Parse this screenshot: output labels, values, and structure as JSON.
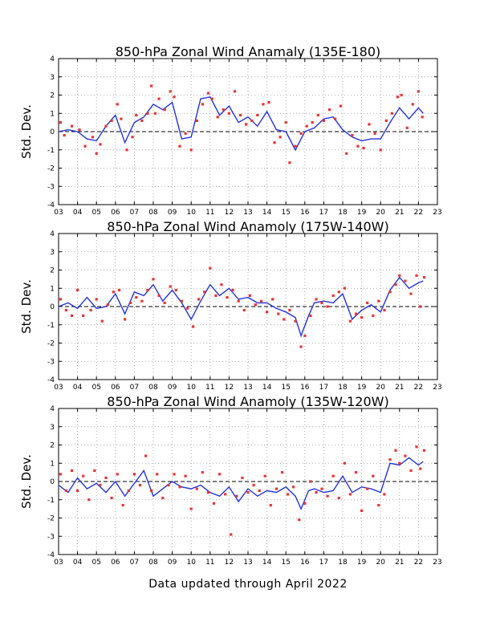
{
  "footer": "Data updated through April 2022",
  "colors": {
    "line": "#2233dd",
    "points": "#ee3333",
    "grid": "#999999",
    "zero": "#000000"
  },
  "chart_data": [
    {
      "type": "line",
      "title": "850-hPa Zonal Wind Anamaly (135E-180)",
      "ylabel": "Std. Dev.",
      "xlabel": "",
      "xlim": [
        2003,
        2023
      ],
      "ylim": [
        -4,
        4
      ],
      "x_ticks": [
        "03",
        "04",
        "05",
        "06",
        "07",
        "08",
        "09",
        "10",
        "11",
        "12",
        "13",
        "14",
        "15",
        "16",
        "17",
        "18",
        "19",
        "20",
        "21",
        "22",
        "23"
      ],
      "y_ticks": [
        "-4",
        "-3",
        "-2",
        "-1",
        "0",
        "1",
        "2",
        "3",
        "4"
      ],
      "grid": true,
      "series": [
        {
          "style": "line",
          "x": [
            2003.0,
            2003.5,
            2004.0,
            2004.5,
            2005.0,
            2005.5,
            2006.0,
            2006.5,
            2007.0,
            2007.5,
            2008.0,
            2008.5,
            2009.0,
            2009.5,
            2010.0,
            2010.5,
            2011.0,
            2011.5,
            2012.0,
            2012.5,
            2013.0,
            2013.5,
            2014.0,
            2014.5,
            2015.0,
            2015.5,
            2016.0,
            2016.5,
            2017.0,
            2017.5,
            2018.0,
            2018.5,
            2019.0,
            2019.5,
            2020.0,
            2020.5,
            2021.0,
            2021.5,
            2022.0,
            2022.25
          ],
          "y": [
            0.0,
            0.1,
            0.0,
            -0.4,
            -0.5,
            0.3,
            0.9,
            -0.6,
            0.5,
            0.8,
            1.5,
            1.2,
            1.6,
            -0.4,
            -0.3,
            1.8,
            1.9,
            0.9,
            1.4,
            0.5,
            0.8,
            0.3,
            1.1,
            0.1,
            0.0,
            -1.0,
            0.0,
            0.2,
            0.7,
            0.8,
            0.1,
            -0.3,
            -0.5,
            -0.4,
            -0.4,
            0.5,
            1.3,
            0.7,
            1.3,
            1.0
          ]
        },
        {
          "style": "points",
          "x": [
            2003.1,
            2003.3,
            2003.7,
            2004.1,
            2004.4,
            2004.8,
            2005.0,
            2005.2,
            2005.5,
            2005.8,
            2006.1,
            2006.3,
            2006.6,
            2006.9,
            2007.1,
            2007.4,
            2007.7,
            2007.9,
            2008.1,
            2008.3,
            2008.6,
            2008.9,
            2009.1,
            2009.4,
            2009.7,
            2010.0,
            2010.3,
            2010.6,
            2010.9,
            2011.1,
            2011.4,
            2011.7,
            2012.0,
            2012.3,
            2012.6,
            2012.9,
            2013.2,
            2013.5,
            2013.8,
            2014.1,
            2014.4,
            2014.7,
            2015.0,
            2015.2,
            2015.5,
            2015.8,
            2016.1,
            2016.4,
            2016.7,
            2017.0,
            2017.3,
            2017.6,
            2017.9,
            2018.2,
            2018.5,
            2018.8,
            2019.1,
            2019.4,
            2019.7,
            2020.0,
            2020.3,
            2020.6,
            2020.9,
            2021.1,
            2021.4,
            2021.7,
            2022.0,
            2022.2
          ],
          "y": [
            0.5,
            -0.2,
            0.3,
            0.1,
            -0.8,
            -0.3,
            -1.2,
            -0.7,
            0.3,
            0.6,
            1.5,
            0.7,
            -1.0,
            -0.3,
            0.9,
            0.6,
            1.0,
            2.5,
            1.0,
            1.8,
            1.2,
            2.2,
            1.9,
            -0.8,
            -0.1,
            -1.0,
            0.6,
            1.5,
            2.1,
            1.8,
            0.8,
            1.2,
            1.0,
            2.2,
            0.9,
            0.4,
            0.6,
            0.9,
            1.5,
            1.6,
            -0.6,
            -0.3,
            0.5,
            -1.7,
            -0.8,
            -0.1,
            0.3,
            0.5,
            0.9,
            0.6,
            1.2,
            0.7,
            1.4,
            -1.2,
            -0.2,
            -0.8,
            -0.9,
            0.4,
            -0.1,
            -1.0,
            0.6,
            1.0,
            1.9,
            2.0,
            0.2,
            1.5,
            2.2,
            0.8
          ]
        }
      ]
    },
    {
      "type": "line",
      "title": "850-hPa Zonal Wind Anamoly (175W-140W)",
      "ylabel": "Std. Dev.",
      "xlabel": "",
      "xlim": [
        2003,
        2023
      ],
      "ylim": [
        -4,
        4
      ],
      "x_ticks": [
        "03",
        "04",
        "05",
        "06",
        "07",
        "08",
        "09",
        "10",
        "11",
        "12",
        "13",
        "14",
        "15",
        "16",
        "17",
        "18",
        "19",
        "20",
        "21",
        "22",
        "23"
      ],
      "y_ticks": [
        "-4",
        "-3",
        "-2",
        "-1",
        "0",
        "1",
        "2",
        "3",
        "4"
      ],
      "grid": true,
      "series": [
        {
          "style": "line",
          "x": [
            2003.0,
            2003.5,
            2004.0,
            2004.5,
            2005.0,
            2005.5,
            2006.0,
            2006.5,
            2007.0,
            2007.5,
            2008.0,
            2008.5,
            2009.0,
            2009.5,
            2010.0,
            2010.5,
            2011.0,
            2011.5,
            2012.0,
            2012.5,
            2013.0,
            2013.5,
            2014.0,
            2014.5,
            2015.0,
            2015.5,
            2015.8,
            2016.2,
            2016.5,
            2017.0,
            2017.5,
            2018.0,
            2018.5,
            2019.0,
            2019.5,
            2020.0,
            2020.5,
            2021.0,
            2021.5,
            2022.0,
            2022.25
          ],
          "y": [
            0.0,
            0.2,
            -0.1,
            0.5,
            -0.1,
            0.0,
            0.7,
            -0.4,
            0.8,
            0.6,
            1.2,
            0.3,
            0.9,
            0.2,
            -0.7,
            0.3,
            1.2,
            0.6,
            1.0,
            0.4,
            0.5,
            0.2,
            0.2,
            -0.1,
            -0.3,
            -0.6,
            -1.6,
            -0.5,
            0.2,
            0.3,
            0.2,
            0.7,
            -0.7,
            -0.2,
            0.1,
            -0.3,
            0.9,
            1.6,
            1.0,
            1.3,
            1.4
          ]
        },
        {
          "style": "points",
          "x": [
            2003.1,
            2003.4,
            2003.7,
            2004.0,
            2004.3,
            2004.7,
            2005.0,
            2005.3,
            2005.6,
            2005.9,
            2006.2,
            2006.5,
            2006.8,
            2007.1,
            2007.4,
            2007.7,
            2008.0,
            2008.3,
            2008.6,
            2008.9,
            2009.2,
            2009.5,
            2009.8,
            2010.1,
            2010.4,
            2010.7,
            2011.0,
            2011.3,
            2011.6,
            2011.9,
            2012.2,
            2012.5,
            2012.8,
            2013.1,
            2013.4,
            2013.7,
            2014.0,
            2014.3,
            2014.6,
            2014.9,
            2015.2,
            2015.5,
            2015.8,
            2016.0,
            2016.3,
            2016.6,
            2016.9,
            2017.2,
            2017.5,
            2017.8,
            2018.1,
            2018.4,
            2018.7,
            2019.0,
            2019.3,
            2019.6,
            2019.9,
            2020.2,
            2020.5,
            2020.8,
            2021.0,
            2021.3,
            2021.6,
            2021.9,
            2022.1,
            2022.3
          ],
          "y": [
            0.4,
            -0.2,
            -0.5,
            0.9,
            -0.5,
            -0.2,
            0.4,
            -0.8,
            0.1,
            0.8,
            0.9,
            -0.7,
            0.2,
            0.5,
            0.3,
            0.9,
            1.5,
            0.6,
            0.2,
            1.1,
            0.9,
            0.3,
            -0.1,
            -1.1,
            0.4,
            0.8,
            2.1,
            0.6,
            1.2,
            0.5,
            0.9,
            0.3,
            -0.2,
            0.6,
            0.1,
            0.3,
            -0.3,
            0.4,
            -0.4,
            -0.7,
            -0.2,
            -0.8,
            -2.2,
            -1.6,
            -0.5,
            0.4,
            0.2,
            0.0,
            0.6,
            0.8,
            1.0,
            -0.8,
            -0.4,
            -0.6,
            0.2,
            -0.5,
            0.3,
            -0.2,
            0.8,
            1.2,
            1.7,
            1.4,
            0.7,
            1.7,
            0.0,
            1.6
          ]
        }
      ]
    },
    {
      "type": "line",
      "title": "850-hPa Zonal Wind Anamoly (135W-120W)",
      "ylabel": "Std. Dev.",
      "xlabel": "",
      "xlim": [
        2003,
        2023
      ],
      "ylim": [
        -4,
        4
      ],
      "x_ticks": [
        "03",
        "04",
        "05",
        "06",
        "07",
        "08",
        "09",
        "10",
        "11",
        "12",
        "13",
        "14",
        "15",
        "16",
        "17",
        "18",
        "19",
        "20",
        "21",
        "22",
        "23"
      ],
      "y_ticks": [
        "-4",
        "-3",
        "-2",
        "-1",
        "0",
        "1",
        "2",
        "3",
        "4"
      ],
      "grid": true,
      "series": [
        {
          "style": "line",
          "x": [
            2003.0,
            2003.5,
            2004.0,
            2004.5,
            2005.0,
            2005.5,
            2006.0,
            2006.5,
            2007.0,
            2007.5,
            2008.0,
            2008.5,
            2009.0,
            2009.5,
            2010.0,
            2010.5,
            2011.0,
            2011.5,
            2012.0,
            2012.5,
            2013.0,
            2013.5,
            2014.0,
            2014.5,
            2015.0,
            2015.5,
            2015.8,
            2016.2,
            2016.5,
            2017.0,
            2017.5,
            2018.0,
            2018.5,
            2019.0,
            2019.5,
            2020.0,
            2020.5,
            2021.0,
            2021.5,
            2022.0,
            2022.25
          ],
          "y": [
            -0.2,
            -0.6,
            0.2,
            -0.4,
            -0.1,
            -0.6,
            0.0,
            -0.8,
            -0.1,
            0.6,
            -0.8,
            -0.4,
            0.0,
            -0.3,
            -0.4,
            -0.2,
            -0.6,
            -0.8,
            -0.3,
            -1.1,
            -0.4,
            -0.8,
            -0.5,
            -0.6,
            -0.3,
            -0.8,
            -1.5,
            -0.5,
            -0.4,
            -0.6,
            -0.5,
            0.3,
            -0.6,
            -0.3,
            -0.4,
            -0.6,
            1.0,
            0.9,
            1.3,
            0.9,
            1.1
          ]
        },
        {
          "style": "points",
          "x": [
            2003.1,
            2003.4,
            2003.7,
            2004.0,
            2004.3,
            2004.6,
            2004.9,
            2005.2,
            2005.5,
            2005.8,
            2006.1,
            2006.4,
            2006.7,
            2007.0,
            2007.3,
            2007.6,
            2007.9,
            2008.2,
            2008.5,
            2008.8,
            2009.1,
            2009.4,
            2009.7,
            2010.0,
            2010.3,
            2010.6,
            2010.9,
            2011.2,
            2011.5,
            2011.8,
            2012.1,
            2012.4,
            2012.7,
            2013.0,
            2013.3,
            2013.6,
            2013.9,
            2014.2,
            2014.5,
            2014.8,
            2015.1,
            2015.4,
            2015.7,
            2016.0,
            2016.3,
            2016.6,
            2016.9,
            2017.2,
            2017.5,
            2017.8,
            2018.1,
            2018.4,
            2018.7,
            2019.0,
            2019.3,
            2019.6,
            2019.9,
            2020.2,
            2020.5,
            2020.8,
            2021.0,
            2021.3,
            2021.6,
            2021.9,
            2022.1,
            2022.3
          ],
          "y": [
            0.4,
            -0.5,
            0.6,
            -0.5,
            0.3,
            -1.0,
            0.6,
            -0.2,
            0.2,
            -0.9,
            0.4,
            -1.3,
            -0.5,
            0.4,
            -0.2,
            1.4,
            -0.5,
            0.4,
            -0.9,
            -0.2,
            0.4,
            -0.3,
            0.3,
            -1.5,
            -0.4,
            0.5,
            -0.6,
            -1.2,
            0.4,
            -0.7,
            -2.9,
            -0.8,
            0.2,
            -0.6,
            -0.2,
            -0.5,
            0.3,
            -1.3,
            -0.4,
            0.5,
            -0.7,
            -0.3,
            -2.1,
            -1.2,
            0.0,
            -0.6,
            -0.4,
            -0.8,
            0.3,
            -0.9,
            1.0,
            -0.7,
            0.5,
            -1.6,
            -0.4,
            0.3,
            -1.3,
            -0.7,
            1.2,
            1.7,
            1.0,
            1.4,
            0.6,
            1.9,
            0.7,
            1.7
          ]
        }
      ]
    }
  ]
}
